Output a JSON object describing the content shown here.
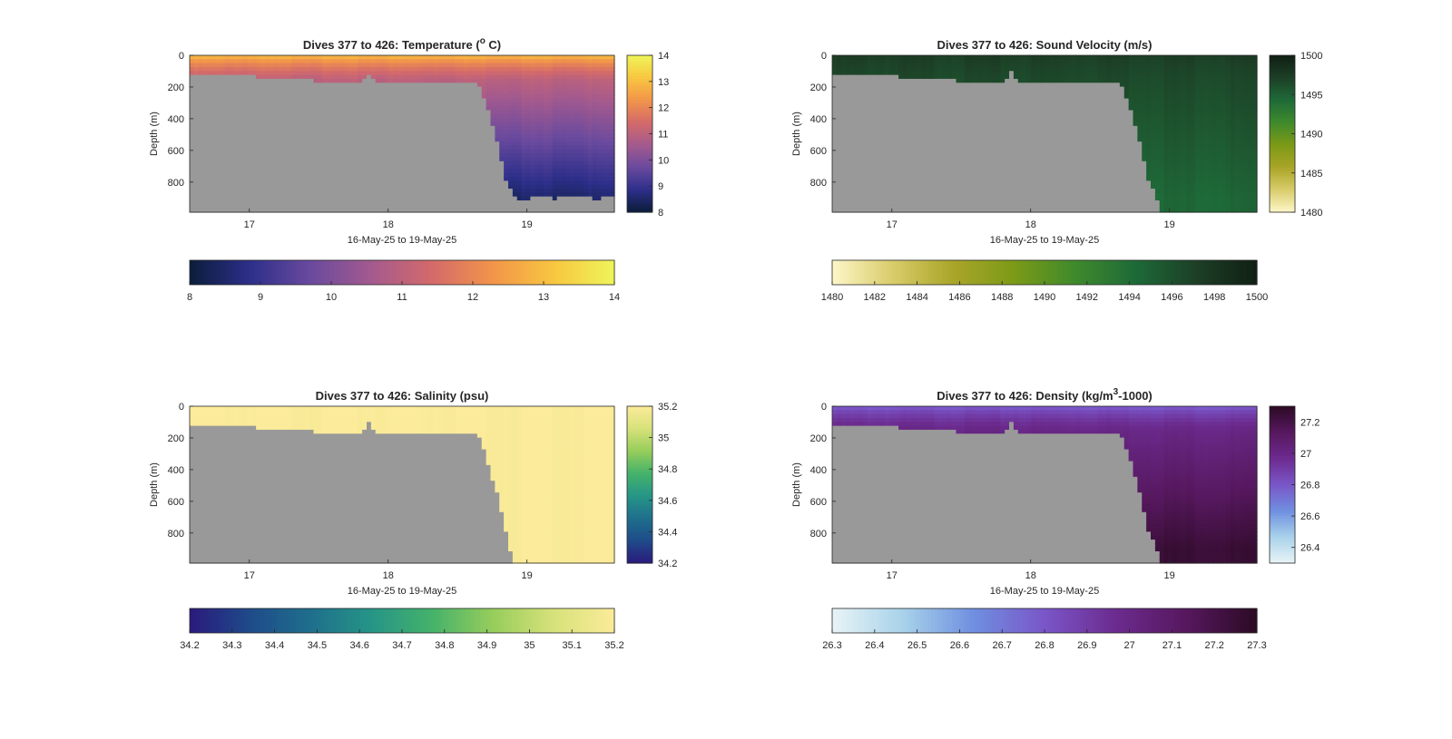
{
  "figure": {
    "panels": [
      {
        "id": "temperature",
        "title_main": "Dives 377 to 426: Temperature (",
        "title_sup": "o",
        "title_tail": " C)",
        "ylabel": "Depth (m)",
        "xlabel": "16-May-25 to 19-May-25"
      },
      {
        "id": "sound-velocity",
        "title_main": "Dives 377 to 426: Sound Velocity (m/s)",
        "title_sup": "",
        "title_tail": "",
        "ylabel": "Depth (m)",
        "xlabel": "16-May-25 to 19-May-25"
      },
      {
        "id": "salinity",
        "title_main": "Dives 377 to 426: Salinity (psu)",
        "title_sup": "",
        "title_tail": "",
        "ylabel": "Depth (m)",
        "xlabel": "16-May-25 to 19-May-25"
      },
      {
        "id": "density",
        "title_main": "Dives 377 to 426: Density (kg/m",
        "title_sup": "3",
        "title_tail": "-1000)",
        "ylabel": "Depth (m)",
        "xlabel": "16-May-25 to 19-May-25"
      }
    ]
  },
  "colors": {
    "land_gray": "#999999",
    "axis": "#262626",
    "temperature_map": [
      "#0b1d3a",
      "#2d2f8a",
      "#6a4a9e",
      "#a45a8e",
      "#d46a6a",
      "#f2954a",
      "#f8c640",
      "#eef55a"
    ],
    "sound_velocity_map": [
      "#fdf6c8",
      "#d8cc6a",
      "#a9a528",
      "#7c9a17",
      "#3f8a2c",
      "#1e6a38",
      "#1d3f26",
      "#101f14"
    ],
    "salinity_map": [
      "#2a1a7c",
      "#1f4b8a",
      "#1f6f8c",
      "#269587",
      "#45b26a",
      "#97cd5b",
      "#d7e27a",
      "#fbeb9a"
    ],
    "density_map": [
      "#e8f4f6",
      "#a8d2ea",
      "#6f8fe0",
      "#7a56c8",
      "#6c2b8f",
      "#56185e",
      "#2c0a24"
    ]
  },
  "chart_data": [
    {
      "type": "heatmap",
      "variable": "Temperature",
      "title": "Dives 377 to 426: Temperature (o C)",
      "xlabel": "16-May-25 to 19-May-25",
      "ylabel": "Depth (m)",
      "x_ticks": [
        "17",
        "18",
        "19"
      ],
      "x_tick_values": [
        17,
        18,
        19
      ],
      "xlim": [
        16.57,
        19.63
      ],
      "y_ticks": [
        "0",
        "200",
        "400",
        "600",
        "800"
      ],
      "y_tick_values": [
        0,
        200,
        400,
        600,
        800
      ],
      "ylim": [
        0,
        990
      ],
      "colorbar_ticks": [
        "8",
        "9",
        "10",
        "11",
        "12",
        "13",
        "14"
      ],
      "colorbar_tick_values": [
        8,
        9,
        10,
        11,
        12,
        13,
        14
      ],
      "clim": [
        8,
        14
      ],
      "horizontal_colorbar_ticks": [
        "8",
        "9",
        "10",
        "11",
        "12",
        "13",
        "14"
      ],
      "horizontal_colorbar_tick_values": [
        8,
        9,
        10,
        11,
        12,
        13,
        14
      ],
      "surface_value": 13.2,
      "shelf_value": 11.0,
      "deep_value_at_900m": 8.5,
      "bottom_depth_profile": {
        "x": [
          16.57,
          16.8,
          17.0,
          17.2,
          17.4,
          17.5,
          17.6,
          17.7,
          17.8,
          17.87,
          17.9,
          17.95,
          18.0,
          18.1,
          18.2,
          18.3,
          18.4,
          18.5,
          18.6,
          18.65,
          18.7,
          18.75,
          18.8,
          18.85,
          18.9,
          18.95,
          19.0,
          19.1,
          19.2,
          19.3,
          19.4,
          19.5,
          19.63
        ],
        "depth": [
          130,
          132,
          135,
          140,
          150,
          165,
          160,
          175,
          165,
          115,
          170,
          178,
          182,
          178,
          175,
          185,
          178,
          180,
          175,
          180,
          290,
          430,
          600,
          790,
          880,
          920,
          915,
          885,
          905,
          890,
          898,
          905,
          900
        ]
      }
    },
    {
      "type": "heatmap",
      "variable": "Sound Velocity",
      "title": "Dives 377 to 426: Sound Velocity (m/s)",
      "xlabel": "16-May-25 to 19-May-25",
      "ylabel": "Depth (m)",
      "x_ticks": [
        "17",
        "18",
        "19"
      ],
      "x_tick_values": [
        17,
        18,
        19
      ],
      "xlim": [
        16.57,
        19.63
      ],
      "y_ticks": [
        "0",
        "200",
        "400",
        "600",
        "800"
      ],
      "y_tick_values": [
        0,
        200,
        400,
        600,
        800
      ],
      "ylim": [
        0,
        990
      ],
      "colorbar_ticks": [
        "1480",
        "1485",
        "1490",
        "1495",
        "1500"
      ],
      "colorbar_tick_values": [
        1480,
        1485,
        1490,
        1495,
        1500
      ],
      "clim": [
        1480,
        1500
      ],
      "horizontal_colorbar_ticks": [
        "1480",
        "1482",
        "1484",
        "1486",
        "1488",
        "1490",
        "1492",
        "1494",
        "1496",
        "1498",
        "1500"
      ],
      "horizontal_colorbar_tick_values": [
        1480,
        1482,
        1484,
        1486,
        1488,
        1490,
        1492,
        1494,
        1496,
        1498,
        1500
      ],
      "surface_value": 1497.5,
      "shelf_value": 1496.5,
      "deep_value_at_900m": 1494.5,
      "bottom_depth_profile": {
        "x": [
          16.57,
          16.8,
          17.0,
          17.2,
          17.4,
          17.5,
          17.6,
          17.7,
          17.8,
          17.87,
          17.9,
          17.95,
          18.0,
          18.1,
          18.2,
          18.3,
          18.4,
          18.5,
          18.6,
          18.65,
          18.7,
          18.75,
          18.8,
          18.85,
          18.9,
          18.95,
          19.0,
          19.1,
          19.2,
          19.3,
          19.4,
          19.5,
          19.63
        ],
        "depth": [
          130,
          132,
          135,
          140,
          150,
          165,
          160,
          175,
          165,
          100,
          170,
          178,
          182,
          178,
          175,
          185,
          178,
          180,
          175,
          180,
          290,
          430,
          600,
          790,
          880,
          990,
          990,
          990,
          990,
          990,
          990,
          990,
          990
        ]
      }
    },
    {
      "type": "heatmap",
      "variable": "Salinity",
      "title": "Dives 377 to 426: Salinity (psu)",
      "xlabel": "16-May-25 to 19-May-25",
      "ylabel": "Depth (m)",
      "x_ticks": [
        "17",
        "18",
        "19"
      ],
      "x_tick_values": [
        17,
        18,
        19
      ],
      "xlim": [
        16.57,
        19.63
      ],
      "y_ticks": [
        "0",
        "200",
        "400",
        "600",
        "800"
      ],
      "y_tick_values": [
        0,
        200,
        400,
        600,
        800
      ],
      "ylim": [
        0,
        990
      ],
      "colorbar_ticks": [
        "34.2",
        "34.4",
        "34.6",
        "34.8",
        "35",
        "35.2"
      ],
      "colorbar_tick_values": [
        34.2,
        34.4,
        34.6,
        34.8,
        35.0,
        35.2
      ],
      "clim": [
        34.2,
        35.2
      ],
      "horizontal_colorbar_ticks": [
        "34.2",
        "34.3",
        "34.4",
        "34.5",
        "34.6",
        "34.7",
        "34.8",
        "34.9",
        "35",
        "35.1",
        "35.2"
      ],
      "horizontal_colorbar_tick_values": [
        34.2,
        34.3,
        34.4,
        34.5,
        34.6,
        34.7,
        34.8,
        34.9,
        35.0,
        35.1,
        35.2
      ],
      "surface_value": 35.2,
      "shelf_value": 35.2,
      "deep_value_at_900m": 35.2,
      "bottom_depth_profile": {
        "x": [
          16.57,
          16.8,
          17.0,
          17.2,
          17.4,
          17.5,
          17.6,
          17.7,
          17.8,
          17.87,
          17.9,
          17.95,
          18.0,
          18.1,
          18.2,
          18.3,
          18.4,
          18.5,
          18.6,
          18.65,
          18.7,
          18.75,
          18.8,
          18.85,
          18.9,
          18.95,
          19.0,
          19.1,
          19.2,
          19.3,
          19.4,
          19.5,
          19.63
        ],
        "depth": [
          130,
          132,
          135,
          140,
          150,
          165,
          160,
          175,
          165,
          100,
          170,
          178,
          182,
          178,
          175,
          185,
          178,
          180,
          175,
          180,
          290,
          450,
          600,
          790,
          990,
          990,
          990,
          990,
          990,
          990,
          990,
          990,
          990
        ]
      }
    },
    {
      "type": "heatmap",
      "variable": "Density",
      "title": "Dives 377 to 426: Density (kg/m3-1000)",
      "xlabel": "16-May-25 to 19-May-25",
      "ylabel": "Depth (m)",
      "x_ticks": [
        "17",
        "18",
        "19"
      ],
      "x_tick_values": [
        17,
        18,
        19
      ],
      "xlim": [
        16.57,
        19.63
      ],
      "y_ticks": [
        "0",
        "200",
        "400",
        "600",
        "800"
      ],
      "y_tick_values": [
        0,
        200,
        400,
        600,
        800
      ],
      "ylim": [
        0,
        990
      ],
      "colorbar_ticks": [
        "26.4",
        "26.6",
        "26.8",
        "27",
        "27.2"
      ],
      "colorbar_tick_values": [
        26.4,
        26.6,
        26.8,
        27.0,
        27.2
      ],
      "clim": [
        26.3,
        27.3
      ],
      "horizontal_colorbar_ticks": [
        "26.3",
        "26.4",
        "26.5",
        "26.6",
        "26.7",
        "26.8",
        "26.9",
        "27",
        "27.1",
        "27.2",
        "27.3"
      ],
      "horizontal_colorbar_tick_values": [
        26.3,
        26.4,
        26.5,
        26.6,
        26.7,
        26.8,
        26.9,
        27.0,
        27.1,
        27.2,
        27.3
      ],
      "surface_value": 26.75,
      "shelf_value": 27.0,
      "deep_value_at_900m": 27.25,
      "bottom_depth_profile": {
        "x": [
          16.57,
          16.8,
          17.0,
          17.2,
          17.4,
          17.5,
          17.6,
          17.7,
          17.8,
          17.87,
          17.9,
          17.95,
          18.0,
          18.1,
          18.2,
          18.3,
          18.4,
          18.5,
          18.6,
          18.65,
          18.7,
          18.75,
          18.8,
          18.85,
          18.9,
          18.95,
          19.0,
          19.1,
          19.2,
          19.3,
          19.4,
          19.5,
          19.63
        ],
        "depth": [
          130,
          132,
          135,
          140,
          150,
          165,
          160,
          175,
          165,
          100,
          170,
          178,
          182,
          178,
          175,
          185,
          178,
          180,
          175,
          180,
          290,
          430,
          600,
          790,
          880,
          990,
          990,
          990,
          990,
          990,
          990,
          990,
          990
        ]
      }
    }
  ]
}
